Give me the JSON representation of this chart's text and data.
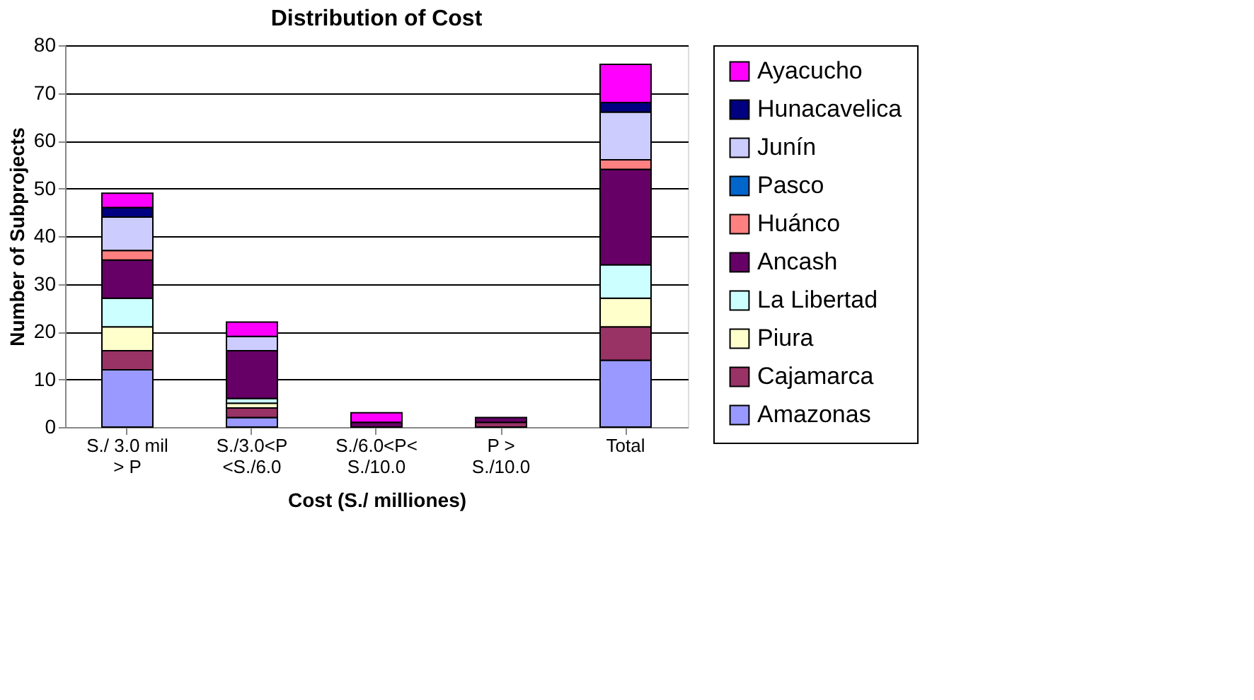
{
  "chart_data": {
    "type": "bar",
    "title": "Distribution of Cost",
    "xlabel": "Cost (S./ milliones)",
    "ylabel": "Number of Subprojects",
    "categories": [
      "S./ 3.0 mil\n> P",
      "S./3.0<P\n<S./6.0",
      "S./6.0<P<\nS./10.0",
      "P >\nS./10.0",
      "Total"
    ],
    "stacked": true,
    "ylim": [
      0,
      80
    ],
    "yticks": [
      0,
      10,
      20,
      30,
      40,
      50,
      60,
      70,
      80
    ],
    "grid": "y",
    "legend": "right",
    "series": [
      {
        "name": "Amazonas",
        "color": "#9999ff",
        "values": [
          12,
          2,
          0,
          0,
          14
        ]
      },
      {
        "name": "Cajamarca",
        "color": "#993366",
        "values": [
          4,
          2,
          0,
          1,
          7
        ]
      },
      {
        "name": "Piura",
        "color": "#ffffcc",
        "values": [
          5,
          1,
          0,
          0,
          6
        ]
      },
      {
        "name": "La Libertad",
        "color": "#ccffff",
        "values": [
          6,
          1,
          0,
          0,
          7
        ]
      },
      {
        "name": "Ancash",
        "color": "#660066",
        "values": [
          8,
          10,
          1,
          1,
          20
        ]
      },
      {
        "name": "Huánco",
        "color": "#ff8080",
        "values": [
          2,
          0,
          0,
          0,
          2
        ]
      },
      {
        "name": "Pasco",
        "color": "#0066cc",
        "values": [
          0,
          0,
          0,
          0,
          0
        ]
      },
      {
        "name": "Junín",
        "color": "#ccccff",
        "values": [
          7,
          3,
          0,
          0,
          10
        ]
      },
      {
        "name": "Hunacavelica",
        "color": "#000080",
        "values": [
          2,
          0,
          0,
          0,
          2
        ]
      },
      {
        "name": "Ayacucho",
        "color": "#ff00ff",
        "values": [
          3,
          3,
          2,
          0,
          8
        ]
      }
    ]
  }
}
